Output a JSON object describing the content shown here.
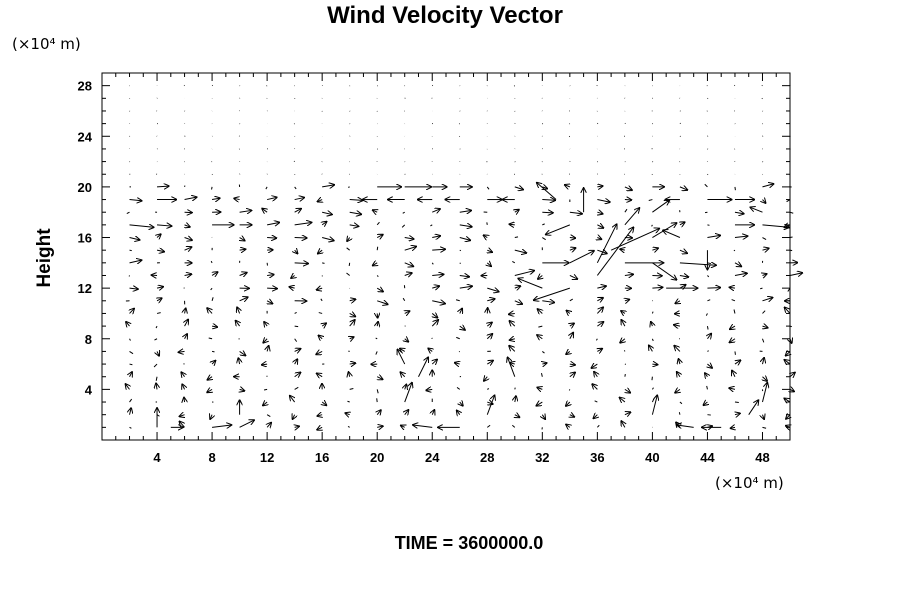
{
  "chart_data": {
    "type": "quiver",
    "title": "Wind Velocity Vector",
    "xlabel": "",
    "ylabel": "Height",
    "x_unit": "(×10⁴ m)",
    "y_unit": "(×10⁴ m)",
    "xlim": [
      0,
      50
    ],
    "ylim": [
      0,
      29
    ],
    "x_ticks": [
      4,
      8,
      12,
      16,
      20,
      24,
      28,
      32,
      36,
      40,
      44,
      48
    ],
    "y_ticks": [
      4,
      8,
      12,
      16,
      20,
      24,
      28
    ],
    "grid": false,
    "vector_grid": {
      "x_start": 2,
      "x_step": 2,
      "x_count": 25,
      "y_start": 1,
      "y_step": 1,
      "y_count": 28
    },
    "vectors": [
      {
        "x": 2,
        "y": 19,
        "u": 1.0,
        "v": -0.1
      },
      {
        "x": 4,
        "y": 19,
        "u": 1.6,
        "v": 0.0
      },
      {
        "x": 6,
        "y": 19,
        "u": 1.0,
        "v": 0.2
      },
      {
        "x": 20,
        "y": 20,
        "u": 2.0,
        "v": 0.0
      },
      {
        "x": 22,
        "y": 20,
        "u": 2.2,
        "v": 0.0
      },
      {
        "x": 24,
        "y": 20,
        "u": 1.2,
        "v": 0.0
      },
      {
        "x": 26,
        "y": 20,
        "u": 1.0,
        "v": 0.0
      },
      {
        "x": 28,
        "y": 19,
        "u": 1.2,
        "v": 0.0
      },
      {
        "x": 20,
        "y": 19,
        "u": -1.2,
        "v": 0.0
      },
      {
        "x": 22,
        "y": 19,
        "u": -1.4,
        "v": 0.0
      },
      {
        "x": 24,
        "y": 19,
        "u": -1.2,
        "v": 0.0
      },
      {
        "x": 26,
        "y": 19,
        "u": -1.2,
        "v": 0.0
      },
      {
        "x": 30,
        "y": 19,
        "u": -1.0,
        "v": 0.0
      },
      {
        "x": 44,
        "y": 19,
        "u": 2.0,
        "v": 0.0
      },
      {
        "x": 46,
        "y": 19,
        "u": 1.6,
        "v": 0.0
      },
      {
        "x": 48,
        "y": 18,
        "u": -1.0,
        "v": 0.4
      },
      {
        "x": 2,
        "y": 17,
        "u": 2.0,
        "v": -0.2
      },
      {
        "x": 4,
        "y": 17,
        "u": 1.2,
        "v": -0.1
      },
      {
        "x": 8,
        "y": 17,
        "u": 1.8,
        "v": 0.0
      },
      {
        "x": 10,
        "y": 17,
        "u": 1.0,
        "v": 0.0
      },
      {
        "x": 12,
        "y": 17,
        "u": 1.0,
        "v": 0.2
      },
      {
        "x": 14,
        "y": 17,
        "u": 1.4,
        "v": 0.2
      },
      {
        "x": 46,
        "y": 17,
        "u": 1.6,
        "v": 0.0
      },
      {
        "x": 48,
        "y": 17,
        "u": 2.2,
        "v": -0.2
      },
      {
        "x": 30,
        "y": 13,
        "u": 1.6,
        "v": 0.4
      },
      {
        "x": 32,
        "y": 14,
        "u": 2.2,
        "v": 0.0
      },
      {
        "x": 34,
        "y": 14,
        "u": 2.0,
        "v": 1.0
      },
      {
        "x": 36,
        "y": 14,
        "u": 1.6,
        "v": 3.2
      },
      {
        "x": 36,
        "y": 13,
        "u": 3.0,
        "v": 4.0
      },
      {
        "x": 37,
        "y": 15,
        "u": 4.0,
        "v": 1.8
      },
      {
        "x": 38,
        "y": 14,
        "u": 3.2,
        "v": 0.0
      },
      {
        "x": 40,
        "y": 14,
        "u": 2.0,
        "v": -1.4
      },
      {
        "x": 40,
        "y": 16,
        "u": 2.0,
        "v": 1.2
      },
      {
        "x": 42,
        "y": 14,
        "u": 3.0,
        "v": -0.2
      },
      {
        "x": 41,
        "y": 12,
        "u": 2.6,
        "v": 0.0
      },
      {
        "x": 34,
        "y": 12,
        "u": -3.0,
        "v": -1.0
      },
      {
        "x": 32,
        "y": 12,
        "u": -2.0,
        "v": 0.8
      },
      {
        "x": 33,
        "y": 19,
        "u": -1.6,
        "v": 1.4
      },
      {
        "x": 34,
        "y": 17,
        "u": -2.0,
        "v": -0.8
      },
      {
        "x": 35,
        "y": 18,
        "u": 0.0,
        "v": 2.0
      },
      {
        "x": 38,
        "y": 17,
        "u": 1.2,
        "v": 1.4
      },
      {
        "x": 40,
        "y": 18,
        "u": 1.4,
        "v": 1.0
      },
      {
        "x": 42,
        "y": 16,
        "u": -1.4,
        "v": 0.6
      },
      {
        "x": 44,
        "y": 15,
        "u": 0.0,
        "v": -1.6
      },
      {
        "x": 42,
        "y": 19,
        "u": -1.2,
        "v": 0.0
      },
      {
        "x": 4,
        "y": 1,
        "u": 0.0,
        "v": 1.6
      },
      {
        "x": 5,
        "y": 1,
        "u": 1.0,
        "v": 0.0
      },
      {
        "x": 8,
        "y": 1,
        "u": 1.6,
        "v": 0.2
      },
      {
        "x": 10,
        "y": 1,
        "u": 1.2,
        "v": 0.6
      },
      {
        "x": 10,
        "y": 2,
        "u": 0.0,
        "v": 1.2
      },
      {
        "x": 22,
        "y": 3,
        "u": 0.6,
        "v": 1.6
      },
      {
        "x": 22,
        "y": 6,
        "u": -0.6,
        "v": 1.2
      },
      {
        "x": 23,
        "y": 5,
        "u": 0.8,
        "v": 1.6
      },
      {
        "x": 24,
        "y": 1,
        "u": -1.6,
        "v": 0.2
      },
      {
        "x": 26,
        "y": 1,
        "u": -1.8,
        "v": 0.0
      },
      {
        "x": 28,
        "y": 2,
        "u": 0.6,
        "v": 1.6
      },
      {
        "x": 30,
        "y": 5,
        "u": -0.6,
        "v": 1.6
      },
      {
        "x": 40,
        "y": 2,
        "u": 0.4,
        "v": 1.6
      },
      {
        "x": 43,
        "y": 1,
        "u": -1.4,
        "v": 0.2
      },
      {
        "x": 45,
        "y": 1,
        "u": -1.6,
        "v": 0.0
      },
      {
        "x": 47,
        "y": 2,
        "u": 0.8,
        "v": 1.2
      },
      {
        "x": 48,
        "y": 3,
        "u": 0.4,
        "v": 1.6
      }
    ]
  },
  "footer": {
    "time_label": "TIME = 3600000.0"
  }
}
